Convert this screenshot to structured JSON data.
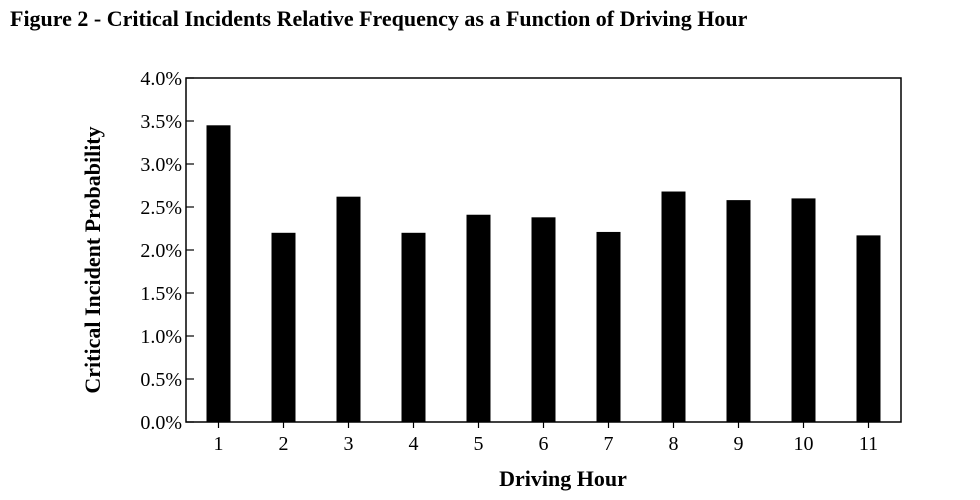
{
  "chart_data": {
    "type": "bar",
    "title": "Figure 2 - Critical Incidents Relative Frequency as a Function of Driving Hour",
    "xlabel": "Driving Hour",
    "ylabel": "Critical Incident Probability",
    "categories": [
      "1",
      "2",
      "3",
      "4",
      "5",
      "6",
      "7",
      "8",
      "9",
      "10",
      "11"
    ],
    "values": [
      3.45,
      2.2,
      2.62,
      2.2,
      2.41,
      2.38,
      2.21,
      2.68,
      2.58,
      2.6,
      2.17
    ],
    "ylim": [
      0,
      4.0
    ],
    "yticks": [
      0.0,
      0.5,
      1.0,
      1.5,
      2.0,
      2.5,
      3.0,
      3.5,
      4.0
    ],
    "ytick_labels": [
      "0.0%",
      "0.5%",
      "1.0%",
      "1.5%",
      "2.0%",
      "2.5%",
      "3.0%",
      "3.5%",
      "4.0%"
    ],
    "grid": false,
    "bar_color": "#000000"
  }
}
